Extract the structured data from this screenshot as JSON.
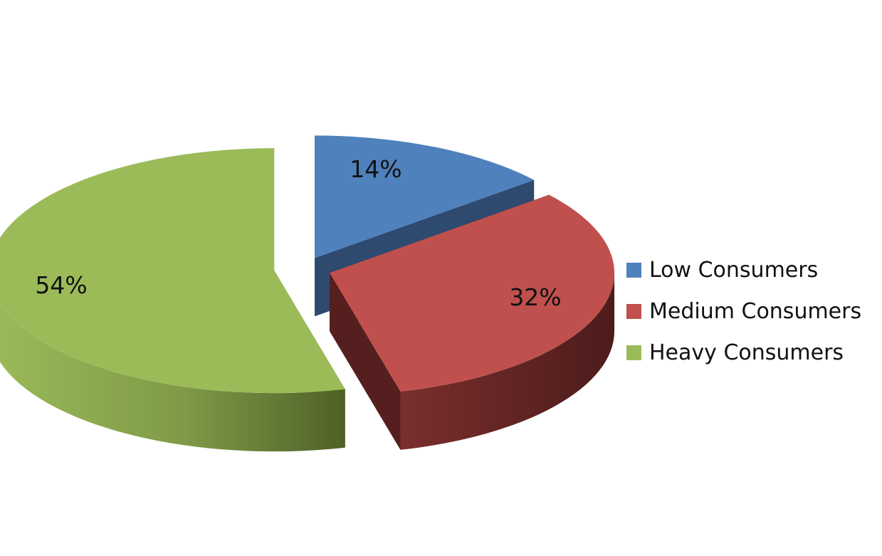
{
  "chart_data": {
    "type": "pie",
    "title": "",
    "categories": [
      "Low Consumers",
      "Medium Consumers",
      "Heavy Consumers"
    ],
    "values": [
      14,
      32,
      54
    ],
    "value_labels": [
      "14%",
      "32%",
      "54%"
    ],
    "colors": [
      "#4F81BD",
      "#C0504D",
      "#9BBB59"
    ],
    "side_colors": [
      "#2E4A6E",
      "#541F1E",
      "#5A7030"
    ],
    "style": "3d-exploded",
    "legend_position": "right"
  }
}
